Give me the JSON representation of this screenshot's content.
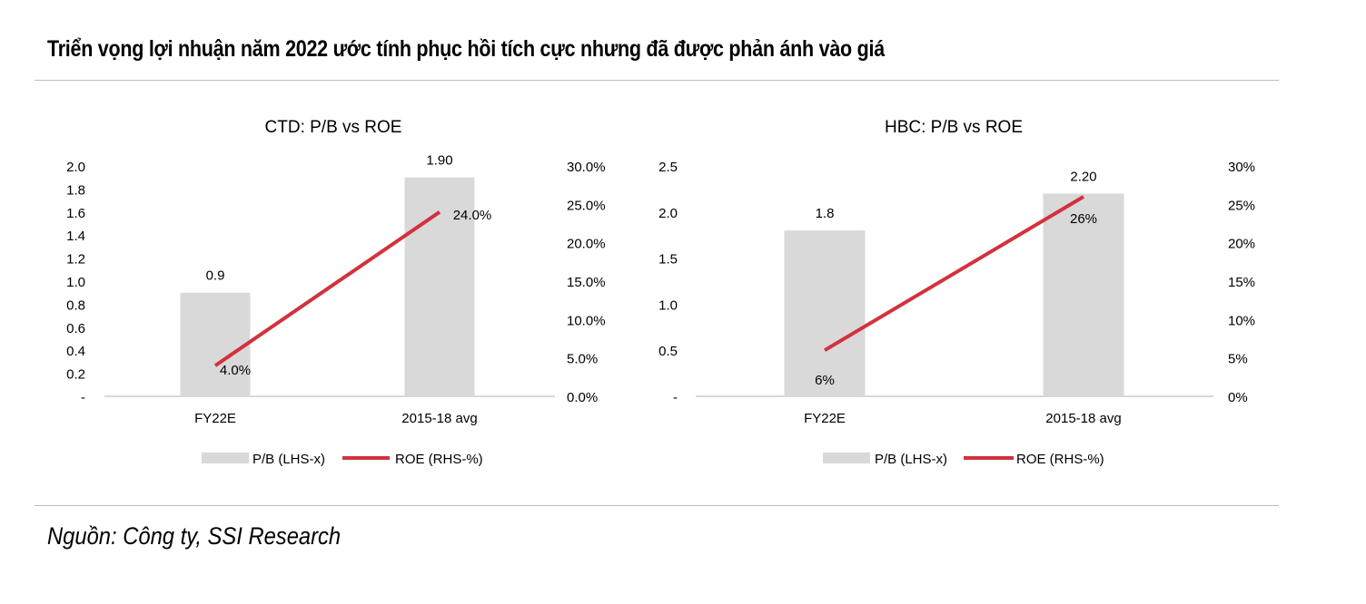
{
  "page": {
    "title": "Triển vọng lợi nhuận năm 2022 ước tính phục hồi tích cực nhưng đã được phản ánh vào giá",
    "source": "Nguồn: Công ty, SSI Research"
  },
  "colors": {
    "bar": "#d9d9d9",
    "line": "#d2323c",
    "axis": "#d9d9d9"
  },
  "chart_data": [
    {
      "type": "bar",
      "title": "CTD: P/B vs ROE",
      "categories": [
        "FY22E",
        "2015-18 avg"
      ],
      "series": [
        {
          "name": "P/B (LHS-x)",
          "type": "bar",
          "axis": "left",
          "values": [
            0.9,
            1.9
          ],
          "labels": [
            "0.9",
            "1.90"
          ]
        },
        {
          "name": "ROE (RHS-%)",
          "type": "line",
          "axis": "right",
          "values": [
            4.0,
            24.0
          ],
          "labels": [
            "4.0%",
            "24.0%"
          ]
        }
      ],
      "left_axis": {
        "ylim": [
          0,
          2.0
        ],
        "ticks": [
          "-",
          "0.2",
          "0.4",
          "0.6",
          "0.8",
          "1.0",
          "1.2",
          "1.4",
          "1.6",
          "1.8",
          "2.0"
        ]
      },
      "right_axis": {
        "ylim": [
          0,
          30
        ],
        "ticks": [
          "0.0%",
          "5.0%",
          "10.0%",
          "15.0%",
          "20.0%",
          "25.0%",
          "30.0%"
        ]
      },
      "legend": [
        "P/B (LHS-x)",
        "ROE (RHS-%)"
      ],
      "legend_position": "bottom",
      "grid": false
    },
    {
      "type": "bar",
      "title": "HBC: P/B vs ROE",
      "categories": [
        "FY22E",
        "2015-18 avg"
      ],
      "series": [
        {
          "name": "P/B (LHS-x)",
          "type": "bar",
          "axis": "left",
          "values": [
            1.8,
            2.2
          ],
          "labels": [
            "1.8",
            "2.20"
          ]
        },
        {
          "name": "ROE (RHS-%)",
          "type": "line",
          "axis": "right",
          "values": [
            6,
            26
          ],
          "labels": [
            "6%",
            "26%"
          ]
        }
      ],
      "left_axis": {
        "ylim": [
          0,
          2.5
        ],
        "ticks": [
          "-",
          "0.5",
          "1.0",
          "1.5",
          "2.0",
          "2.5"
        ]
      },
      "right_axis": {
        "ylim": [
          0,
          30
        ],
        "ticks": [
          "0%",
          "5%",
          "10%",
          "15%",
          "20%",
          "25%",
          "30%"
        ]
      },
      "legend": [
        "P/B (LHS-x)",
        "ROE (RHS-%)"
      ],
      "legend_position": "bottom",
      "grid": false
    }
  ]
}
